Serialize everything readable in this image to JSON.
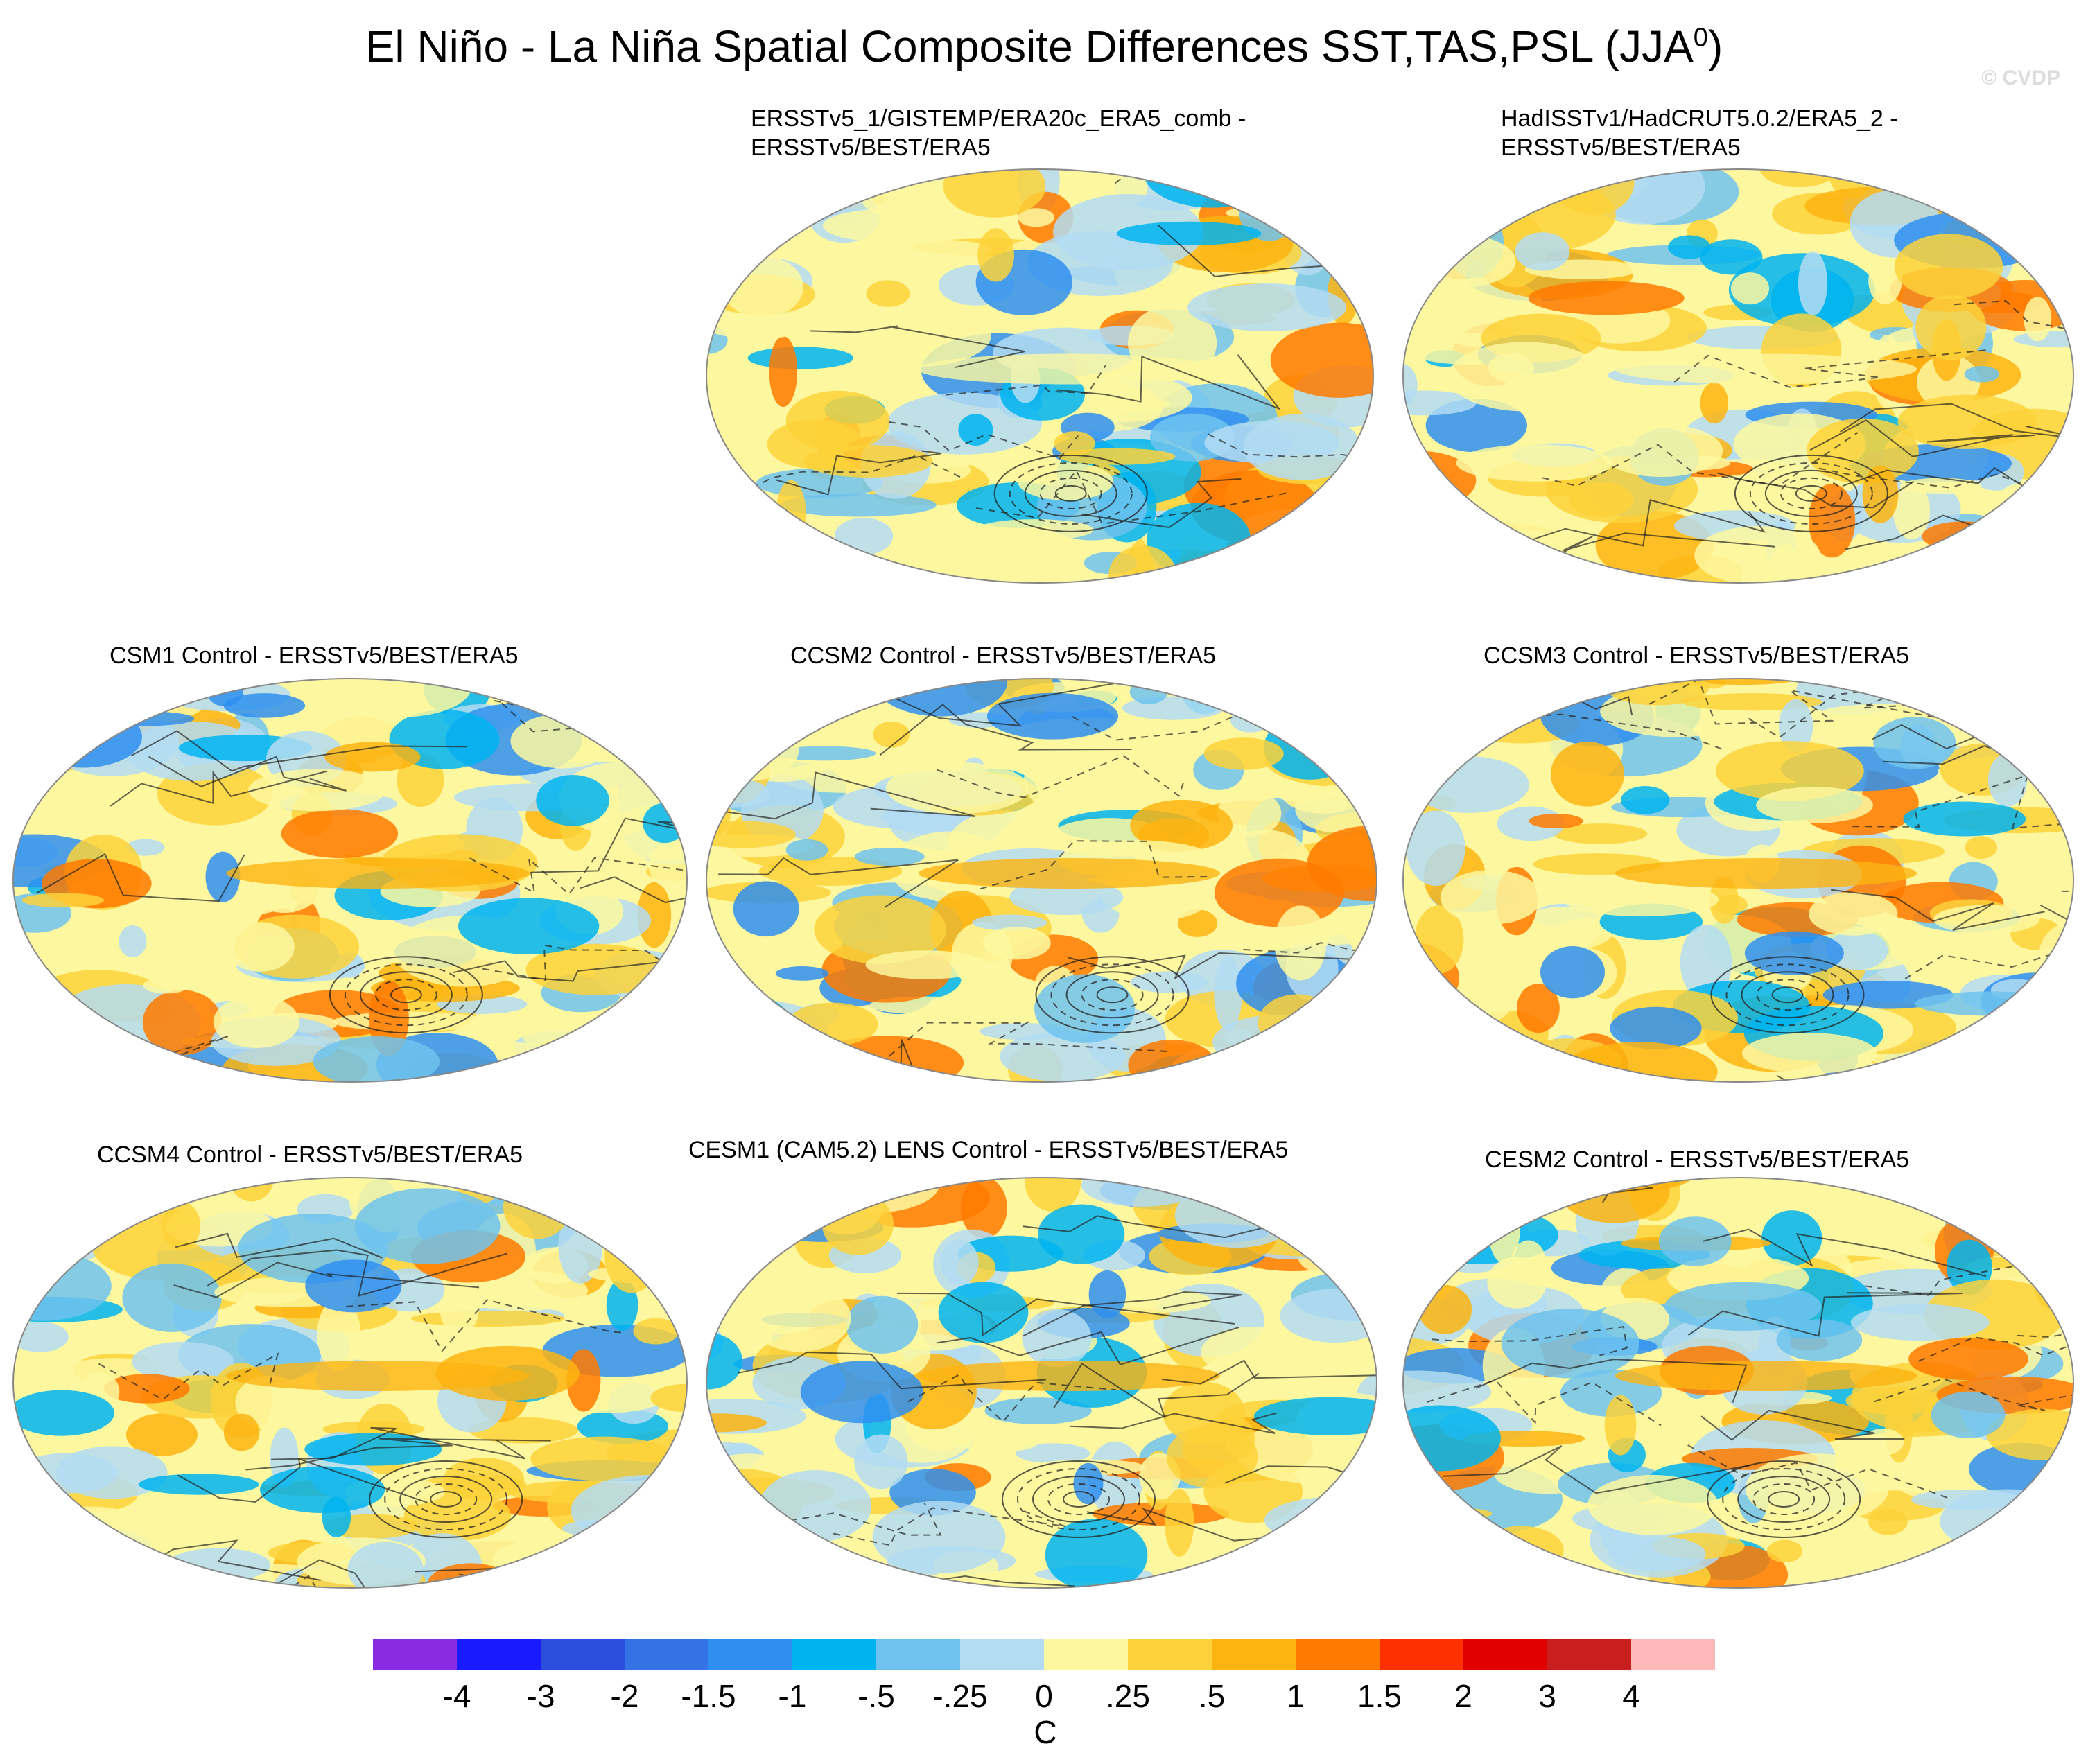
{
  "title": {
    "main": "El Niño - La Niña Spatial Composite Differences SST,TAS,PSL (JJA",
    "sup": "0",
    "close": ")"
  },
  "watermark": "© CVDP",
  "panels": [
    {
      "line1": "ERSSTv5_1/GISTEMP/ERA20c_ERA5_comb -",
      "line2": "ERSSTv5/BEST/ERA5"
    },
    {
      "line1": "HadISSTv1/HadCRUT5.0.2/ERA5_2 -",
      "line2": "ERSSTv5/BEST/ERA5"
    },
    {
      "line1": "CSM1 Control - ERSSTv5/BEST/ERA5",
      "line2": ""
    },
    {
      "line1": "CCSM2 Control - ERSSTv5/BEST/ERA5",
      "line2": ""
    },
    {
      "line1": "CCSM3 Control - ERSSTv5/BEST/ERA5",
      "line2": ""
    },
    {
      "line1": "CCSM4 Control - ERSSTv5/BEST/ERA5",
      "line2": ""
    },
    {
      "line1": "CESM1 (CAM5.2) LENS Control - ERSSTv5/BEST/ERA5",
      "line2": ""
    },
    {
      "line1": "CESM2 Control - ERSSTv5/BEST/ERA5",
      "line2": ""
    }
  ],
  "colorbar": {
    "colors": [
      "#8a2be2",
      "#1a1aff",
      "#2b4fdc",
      "#3373e6",
      "#2f8ff0",
      "#00b4f0",
      "#6ec3ee",
      "#b3dcf2",
      "#fdf8a0",
      "#fdd23a",
      "#fdb410",
      "#ff7a00",
      "#ff3000",
      "#e00000",
      "#c81e1e",
      "#ffb9b9"
    ],
    "labels": [
      "-4",
      "-3",
      "-2",
      "-1.5",
      "-1",
      "-.5",
      "-.25",
      "0",
      ".25",
      ".5",
      "1",
      "1.5",
      "2",
      "3",
      "4"
    ],
    "units": "C"
  }
}
